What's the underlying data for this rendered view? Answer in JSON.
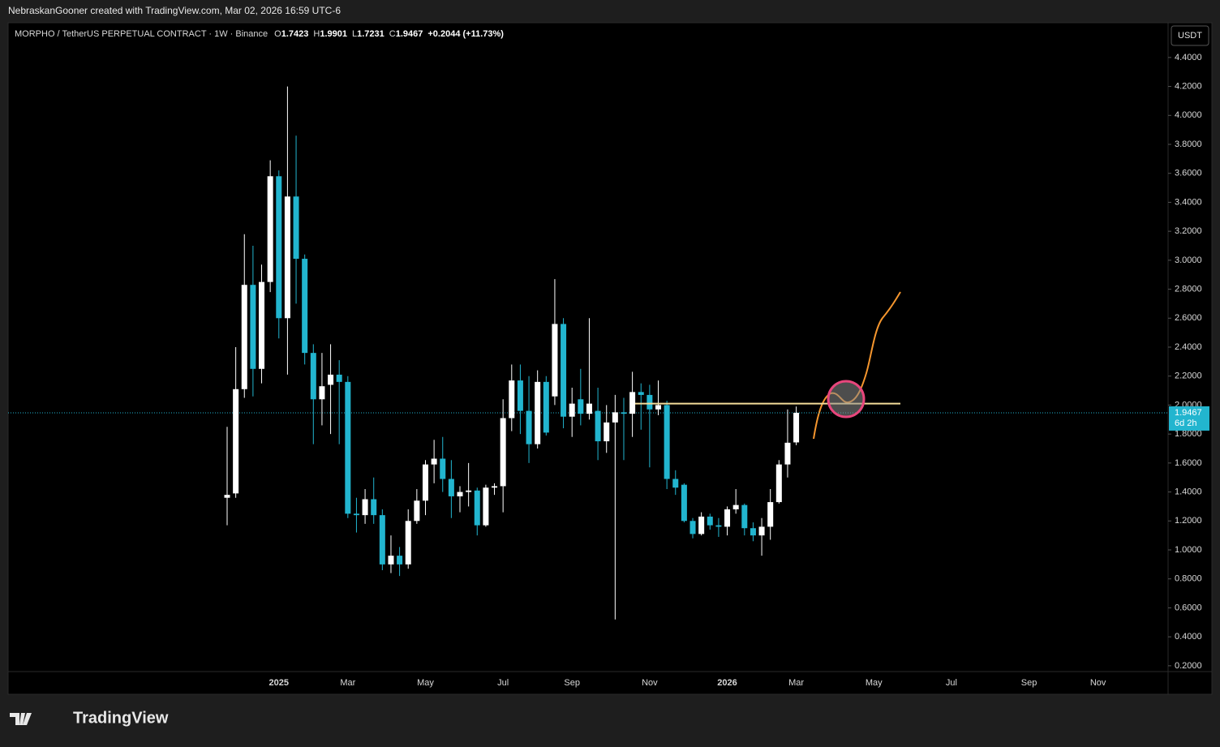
{
  "header": {
    "credit": "NebraskanGooner created with TradingView.com, Mar 02, 2026 16:59 UTC-6"
  },
  "footer": {
    "brand": "TradingView"
  },
  "chart_data": {
    "type": "candlestick",
    "symbol": "MORPHO / TetherUS PERPETUAL CONTRACT · 1W · Binance",
    "ohlc_labels": [
      "O",
      "H",
      "L",
      "C"
    ],
    "change": "+0.2044 (+11.73%)",
    "currency": "USDT",
    "categories": [
      null,
      null,
      null,
      null,
      null,
      null,
      "2025",
      null,
      null,
      null,
      null,
      null,
      null,
      null,
      "Mar",
      null,
      null,
      null,
      null,
      null,
      null,
      null,
      null,
      "May",
      null,
      null,
      null,
      null,
      null,
      null,
      null,
      null,
      "Jul",
      null,
      null,
      null,
      null,
      null,
      null,
      null,
      "Sep",
      null,
      null,
      null,
      null,
      null,
      null,
      null,
      null,
      "Nov",
      null,
      null,
      null,
      null,
      null,
      null,
      null,
      null,
      "2026",
      null,
      null,
      null,
      null,
      null,
      null,
      null,
      "Mar",
      null,
      null,
      null,
      null,
      null,
      null,
      null,
      null,
      "May",
      null,
      null,
      null,
      null,
      null,
      null,
      null,
      null,
      "Jul",
      null,
      null,
      null,
      null,
      null,
      null,
      null,
      null,
      "Sep",
      null,
      null,
      null,
      null,
      null,
      null,
      null,
      "Nov"
    ],
    "open": [
      1.36,
      1.39,
      2.11,
      2.83,
      2.25,
      2.85,
      3.58,
      2.6,
      3.44,
      3.01,
      2.36,
      2.04,
      2.14,
      2.21,
      2.16,
      1.25,
      1.24,
      1.35,
      1.24,
      0.9,
      0.96,
      0.9,
      1.2,
      1.34,
      1.59,
      1.63,
      1.49,
      1.37,
      1.4,
      1.41,
      1.17,
      1.43,
      1.44,
      1.91,
      2.17,
      1.96,
      1.73,
      2.16,
      2.06,
      2.56,
      1.92,
      2.04,
      1.94,
      1.96,
      1.75,
      1.88,
      1.95,
      1.94,
      2.09,
      2.07,
      1.97,
      2.0,
      1.49,
      1.45,
      1.2,
      1.11,
      1.23,
      1.17,
      1.16,
      1.28,
      1.31,
      1.15,
      1.1,
      1.16,
      1.33,
      1.59,
      1.7423,
      null,
      null,
      null,
      null,
      null,
      null,
      null,
      null,
      null,
      null,
      null,
      null,
      null,
      null,
      null,
      null,
      null,
      null,
      null,
      null,
      null,
      null,
      null,
      null,
      null,
      null,
      null,
      null,
      null,
      null,
      null,
      null,
      null,
      null,
      null
    ],
    "high": [
      1.85,
      2.4,
      3.18,
      3.1,
      2.97,
      3.69,
      3.62,
      4.2,
      3.86,
      3.04,
      2.42,
      2.36,
      2.42,
      2.31,
      2.2,
      1.36,
      1.42,
      1.5,
      1.28,
      1.1,
      1.02,
      1.28,
      1.42,
      1.62,
      1.76,
      1.78,
      1.62,
      1.44,
      1.6,
      1.43,
      1.45,
      1.46,
      2.04,
      2.28,
      2.28,
      2.2,
      2.24,
      2.2,
      2.87,
      2.6,
      2.12,
      2.25,
      2.6,
      2.12,
      2.0,
      2.07,
      2.05,
      2.23,
      2.15,
      2.14,
      2.17,
      2.03,
      1.55,
      1.46,
      1.22,
      1.26,
      1.25,
      1.22,
      1.3,
      1.42,
      1.32,
      1.19,
      1.22,
      1.42,
      1.62,
      1.97,
      1.9901,
      null,
      null,
      null,
      null,
      null,
      null,
      null,
      null,
      null,
      null,
      null,
      null,
      null,
      null,
      null,
      null,
      null,
      null,
      null,
      null,
      null,
      null,
      null,
      null,
      null,
      null,
      null,
      null,
      null,
      null,
      null,
      null,
      null,
      null,
      null
    ],
    "low": [
      1.17,
      1.36,
      2.05,
      2.06,
      2.15,
      2.78,
      2.46,
      2.21,
      2.7,
      2.28,
      1.73,
      1.86,
      1.8,
      1.73,
      1.22,
      1.12,
      1.18,
      1.18,
      0.86,
      0.84,
      0.82,
      0.87,
      1.18,
      1.24,
      1.46,
      1.4,
      1.22,
      1.26,
      1.3,
      1.1,
      1.16,
      1.38,
      1.26,
      1.82,
      1.8,
      1.6,
      1.7,
      1.79,
      2.0,
      1.84,
      1.78,
      1.86,
      1.9,
      1.62,
      1.67,
      0.52,
      1.62,
      1.78,
      1.83,
      1.57,
      1.93,
      1.42,
      1.38,
      1.19,
      1.08,
      1.1,
      1.14,
      1.09,
      1.1,
      1.25,
      1.1,
      1.06,
      0.96,
      1.07,
      1.32,
      1.5,
      1.7231,
      null,
      null,
      null,
      null,
      null,
      null,
      null,
      null,
      null,
      null,
      null,
      null,
      null,
      null,
      null,
      null,
      null,
      null,
      null,
      null,
      null,
      null,
      null,
      null,
      null,
      null,
      null,
      null,
      null,
      null,
      null,
      null,
      null,
      null,
      null
    ],
    "close": [
      1.38,
      2.11,
      2.83,
      2.25,
      2.85,
      3.58,
      2.6,
      3.44,
      3.01,
      2.36,
      2.04,
      2.13,
      2.21,
      2.16,
      1.25,
      1.24,
      1.35,
      1.24,
      0.9,
      0.96,
      0.9,
      1.2,
      1.34,
      1.59,
      1.63,
      1.49,
      1.37,
      1.4,
      1.41,
      1.17,
      1.43,
      1.44,
      1.91,
      2.17,
      1.96,
      1.73,
      2.16,
      1.81,
      2.56,
      1.92,
      2.01,
      1.94,
      2.01,
      1.75,
      1.88,
      1.95,
      1.94,
      2.09,
      2.07,
      1.97,
      2.0,
      1.49,
      1.43,
      1.2,
      1.11,
      1.23,
      1.17,
      1.16,
      1.28,
      1.31,
      1.15,
      1.1,
      1.16,
      1.33,
      1.59,
      1.74,
      1.9467,
      null,
      null,
      null,
      null,
      null,
      null,
      null,
      null,
      null,
      null,
      null,
      null,
      null,
      null,
      null,
      null,
      null,
      null,
      null,
      null,
      null,
      null,
      null,
      null,
      null,
      null,
      null,
      null,
      null,
      null,
      null,
      null,
      null,
      null,
      null
    ],
    "up_color": "#ffffff",
    "down_color": "#22b5cf",
    "ylim": [
      0.16,
      4.64
    ],
    "yticks": [
      {
        "value": 0.2,
        "label": "0.2000"
      },
      {
        "value": 0.4,
        "label": "0.4000"
      },
      {
        "value": 0.6,
        "label": "0.6000"
      },
      {
        "value": 0.8,
        "label": "0.8000"
      },
      {
        "value": 1.0,
        "label": "1.0000"
      },
      {
        "value": 1.2,
        "label": "1.2000"
      },
      {
        "value": 1.4,
        "label": "1.4000"
      },
      {
        "value": 1.6,
        "label": "1.6000"
      },
      {
        "value": 1.8,
        "label": "1.8000"
      },
      {
        "value": 2.0,
        "label": "2.0000"
      },
      {
        "value": 2.2,
        "label": "2.2000"
      },
      {
        "value": 2.4,
        "label": "2.4000"
      },
      {
        "value": 2.6,
        "label": "2.6000"
      },
      {
        "value": 2.8,
        "label": "2.8000"
      },
      {
        "value": 3.0,
        "label": "3.0000"
      },
      {
        "value": 3.2,
        "label": "3.2000"
      },
      {
        "value": 3.4,
        "label": "3.4000"
      },
      {
        "value": 3.6,
        "label": "3.6000"
      },
      {
        "value": 3.8,
        "label": "3.8000"
      },
      {
        "value": 4.0,
        "label": "4.0000"
      },
      {
        "value": 4.2,
        "label": "4.2000"
      },
      {
        "value": 4.4,
        "label": "4.4000"
      }
    ],
    "last_price": 1.9467,
    "countdown": "6d 2h",
    "hline": 2.01,
    "hline_color": "#f3dd9a"
  }
}
